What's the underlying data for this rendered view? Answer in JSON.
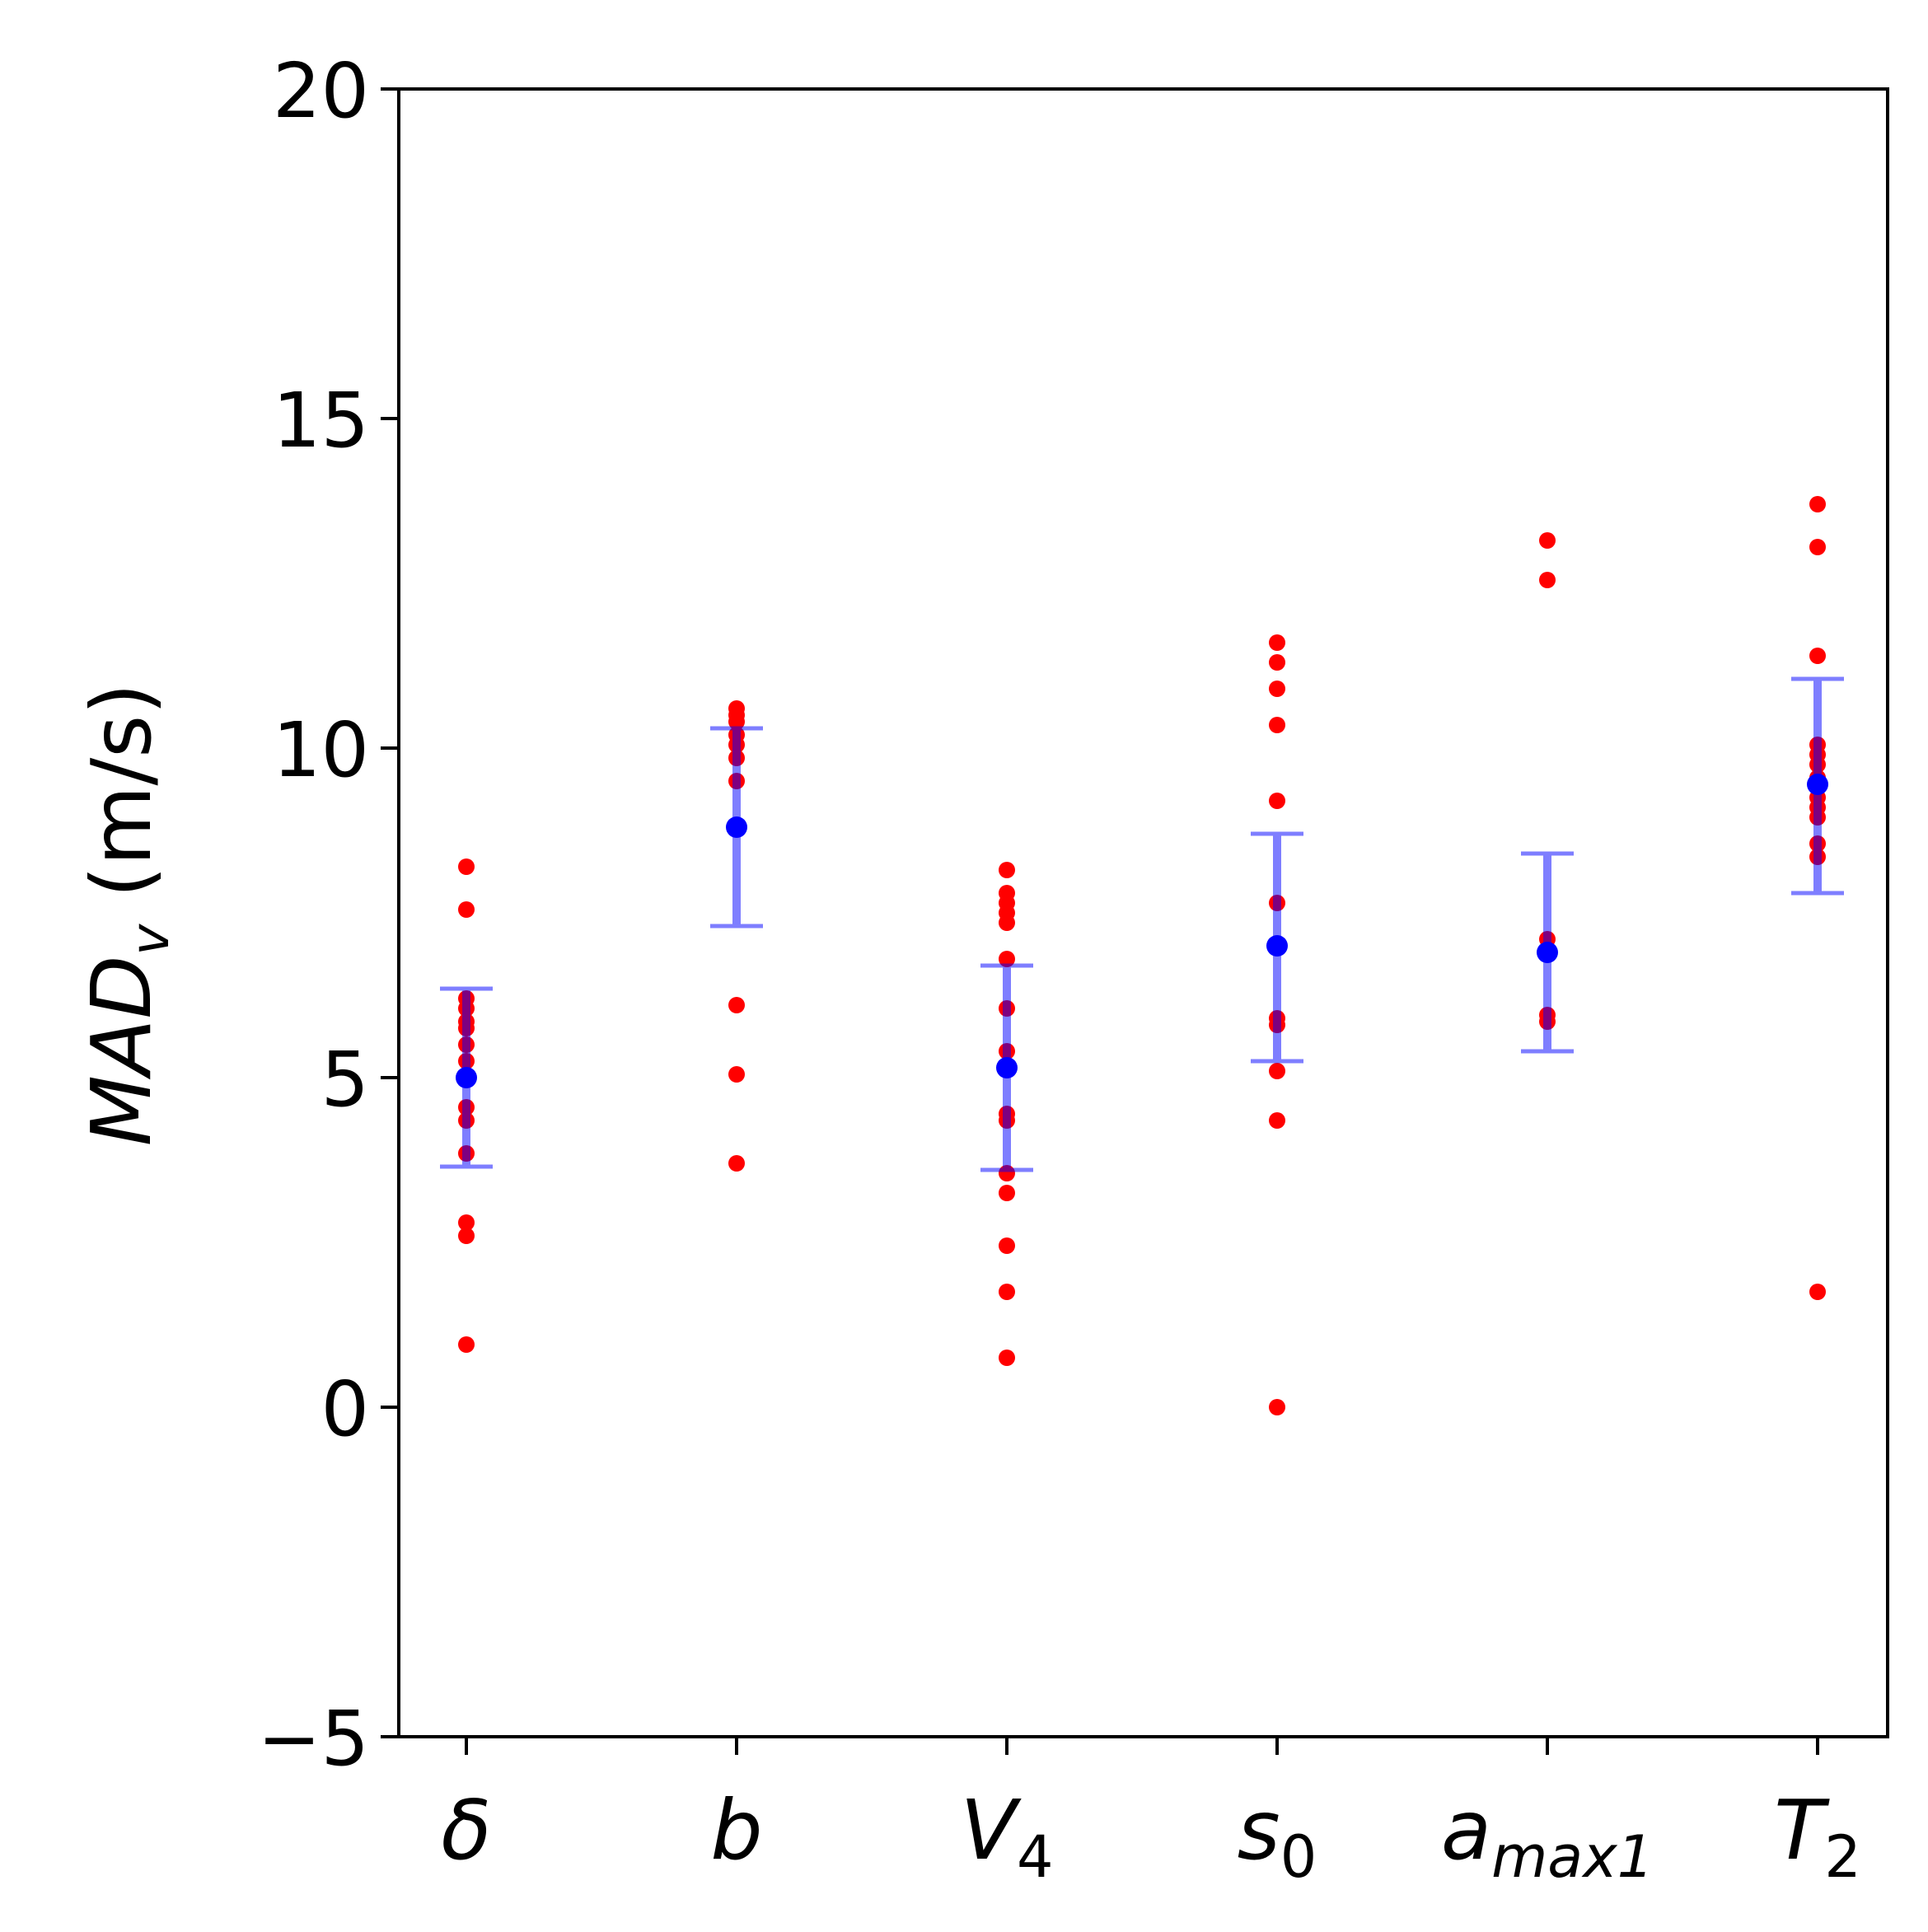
{
  "chart_data": {
    "type": "scatter",
    "title": "",
    "ylabel": {
      "main": "MAD",
      "sub": "v",
      "unit": " (m/s)"
    },
    "ylim": [
      -5,
      20
    ],
    "y_ticks": [
      -5,
      0,
      5,
      10,
      15,
      20
    ],
    "y_tick_labels": [
      "−5",
      "0",
      "5",
      "10",
      "15",
      "20"
    ],
    "grid": false,
    "categories": [
      {
        "main": "δ",
        "sub": ""
      },
      {
        "main": "b",
        "sub": ""
      },
      {
        "main": "V",
        "sub": "4"
      },
      {
        "main": "s",
        "sub": "0"
      },
      {
        "main": "a",
        "sub": "max1"
      },
      {
        "main": "T",
        "sub": "2"
      }
    ],
    "series": [
      {
        "marker": "individual points",
        "color": "#ff0000",
        "points": [
          [
            8.2,
            7.55,
            6.2,
            6.05,
            5.85,
            5.75,
            5.5,
            5.25,
            4.55,
            4.35,
            3.85,
            2.8,
            2.6,
            0.95
          ],
          [
            10.6,
            10.5,
            10.4,
            10.2,
            10.05,
            9.85,
            9.5,
            6.1,
            5.05,
            3.7
          ],
          [
            8.15,
            7.8,
            7.65,
            7.5,
            7.35,
            6.8,
            6.05,
            5.4,
            4.45,
            4.35,
            3.55,
            3.25,
            2.45,
            1.75,
            0.75
          ],
          [
            11.6,
            11.3,
            10.9,
            10.35,
            9.2,
            7.65,
            5.9,
            5.8,
            5.1,
            4.35,
            0.0
          ],
          [
            13.15,
            12.55,
            7.1,
            5.95,
            5.85
          ],
          [
            13.7,
            13.05,
            11.4,
            10.05,
            9.9,
            9.75,
            9.55,
            9.4,
            9.25,
            9.1,
            8.95,
            8.55,
            8.35,
            1.75
          ]
        ]
      },
      {
        "marker": "mean",
        "color": "#0000ff",
        "values": [
          5.0,
          8.8,
          5.15,
          7.0,
          6.9,
          9.45
        ],
        "err_low": [
          3.65,
          7.3,
          3.6,
          5.25,
          5.4,
          7.8
        ],
        "err_high": [
          6.35,
          10.3,
          6.7,
          8.7,
          8.4,
          11.05
        ]
      }
    ]
  }
}
